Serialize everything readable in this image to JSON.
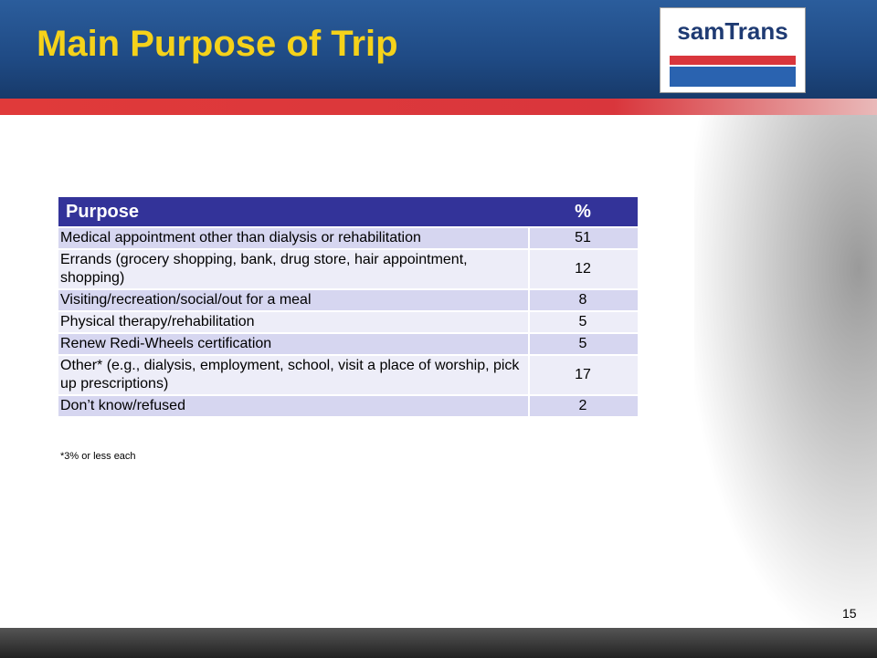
{
  "header": {
    "title": "Main Purpose of Trip",
    "logo": "samTrans"
  },
  "table": {
    "headers": [
      "Purpose",
      "%"
    ],
    "rows": [
      [
        "Medical appointment other than dialysis or rehabilitation",
        51
      ],
      [
        "Errands (grocery shopping, bank, drug store, hair appointment, shopping)",
        12
      ],
      [
        "Visiting/recreation/social/out for a meal",
        8
      ],
      [
        "Physical therapy/rehabilitation",
        5
      ],
      [
        "Renew Redi-Wheels certification",
        5
      ],
      [
        "Other* (e.g., dialysis, employment, school, visit a place of worship, pick up prescriptions)",
        17
      ],
      [
        "Don’t know/refused",
        2
      ]
    ]
  },
  "footnote": "*3% or less each",
  "page_number": "15"
}
